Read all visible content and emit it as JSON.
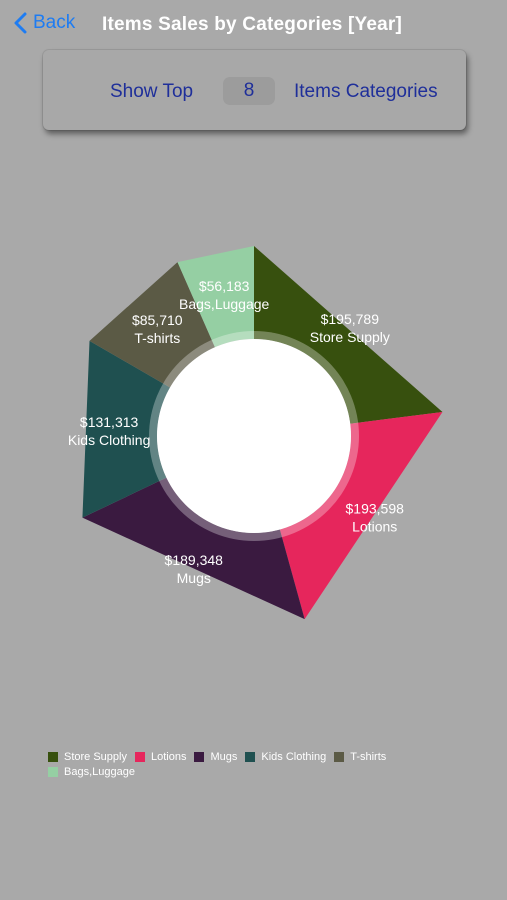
{
  "nav": {
    "back_label": "Back",
    "title": "Items Sales by Categories [Year]"
  },
  "controls": {
    "show_label": "Show Top",
    "top_count": "8",
    "categories_label": "Items Categories"
  },
  "chart_data": {
    "type": "pie",
    "donut": true,
    "categories": [
      "Store Supply",
      "Lotions",
      "Mugs",
      "Kids Clothing",
      "T-shirts",
      "Bags,Luggage"
    ],
    "values": [
      195789,
      193598,
      189348,
      131313,
      85710,
      56183
    ],
    "value_labels": [
      "$195,789",
      "$193,598",
      "$189,348",
      "$131,313",
      "$85,710",
      "$56,183"
    ],
    "colors": [
      "#37500e",
      "#e6265c",
      "#3a1a40",
      "#1f5050",
      "#5b5a45",
      "#95cfa3"
    ],
    "legend_position": "bottom-left"
  }
}
